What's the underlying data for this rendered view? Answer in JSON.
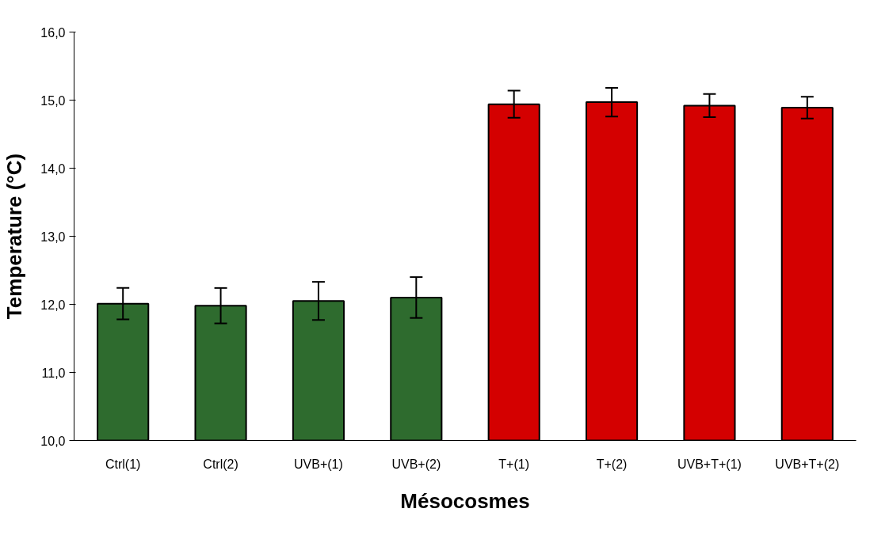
{
  "chart_data": {
    "type": "bar",
    "xlabel": "Mésocosmes",
    "ylabel": "Temperature (°C)",
    "categories": [
      "Ctrl(1)",
      "Ctrl(2)",
      "UVB+(1)",
      "UVB+(2)",
      "T+(1)",
      "T+(2)",
      "UVB+T+(1)",
      "UVB+T+(2)"
    ],
    "values": [
      12.01,
      11.98,
      12.05,
      12.1,
      14.94,
      14.97,
      14.92,
      14.89
    ],
    "errors": [
      0.23,
      0.26,
      0.28,
      0.3,
      0.2,
      0.21,
      0.17,
      0.16
    ],
    "colors": [
      "#2e6b2e",
      "#2e6b2e",
      "#2e6b2e",
      "#2e6b2e",
      "#d40000",
      "#d40000",
      "#d40000",
      "#d40000"
    ],
    "ylim": [
      10,
      16
    ],
    "yticks": [
      {
        "value": 10,
        "label": "10,0"
      },
      {
        "value": 11,
        "label": "11,0"
      },
      {
        "value": 12,
        "label": "12,0"
      },
      {
        "value": 13,
        "label": "13,0"
      },
      {
        "value": 14,
        "label": "14,0"
      },
      {
        "value": 15,
        "label": "15,0"
      },
      {
        "value": 16,
        "label": "16,0"
      }
    ],
    "grid": false
  }
}
